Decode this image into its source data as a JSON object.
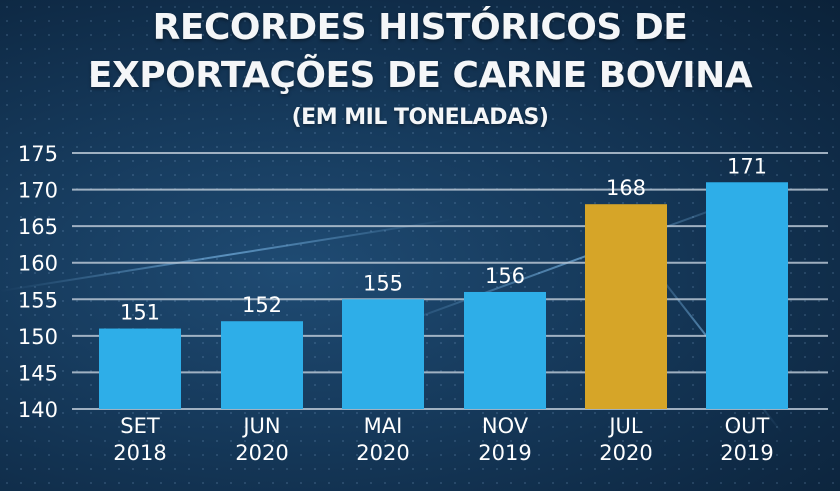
{
  "header": {
    "title_line1": "RECORDES HISTÓRICOS DE",
    "title_line2": "EXPORTAÇÕES DE CARNE BOVINA",
    "subtitle": "(EM MIL TONELADAS)"
  },
  "colors": {
    "bar_default": "#2eaee8",
    "bar_highlight": "#d6a528",
    "gridline": "#b8c6d4",
    "text": "#ffffff"
  },
  "chart_data": {
    "type": "bar",
    "title": "RECORDES HISTÓRICOS DE EXPORTAÇÕES DE CARNE BOVINA",
    "subtitle": "(EM MIL TONELADAS)",
    "categories": [
      {
        "month": "SET",
        "year": "2018"
      },
      {
        "month": "JUN",
        "year": "2020"
      },
      {
        "month": "MAI",
        "year": "2020"
      },
      {
        "month": "NOV",
        "year": "2019"
      },
      {
        "month": "JUL",
        "year": "2020"
      },
      {
        "month": "OUT",
        "year": "2019"
      }
    ],
    "values": [
      151,
      152,
      155,
      156,
      168,
      171
    ],
    "highlight_index": 4,
    "ylim": [
      140,
      175
    ],
    "yticks": [
      140,
      145,
      150,
      155,
      160,
      165,
      170,
      175
    ],
    "grid": true,
    "xlabel": "",
    "ylabel": ""
  }
}
